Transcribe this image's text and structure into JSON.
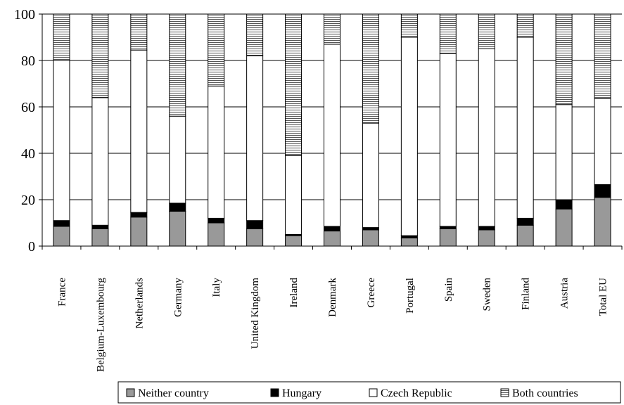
{
  "chart_data": {
    "type": "bar",
    "stacked": true,
    "categories": [
      "France",
      "Belgium-Luxembourg",
      "Netherlands",
      "Germany",
      "Italy",
      "United Kingdom",
      "Ireland",
      "Denmark",
      "Greece",
      "Portugal",
      "Spain",
      "Sweden",
      "Finland",
      "Austria",
      "Total EU"
    ],
    "series": [
      {
        "name": "Neither country",
        "color": "#999999",
        "pattern": "solid",
        "values": [
          8.5,
          7.5,
          12.5,
          15,
          10,
          7.5,
          4.5,
          6.5,
          7,
          3.5,
          7.5,
          7,
          9,
          16,
          21
        ]
      },
      {
        "name": "Hungary",
        "color": "#000000",
        "pattern": "solid",
        "values": [
          2.5,
          1.5,
          2,
          3.5,
          2,
          3.5,
          0.5,
          2,
          1,
          1,
          1,
          1.5,
          3,
          4,
          5.5
        ]
      },
      {
        "name": "Czech Republic",
        "color": "#ffffff",
        "pattern": "solid",
        "values": [
          69,
          55,
          70,
          37.5,
          57,
          71,
          34,
          78.5,
          45,
          85.5,
          74.5,
          76.5,
          78,
          41,
          37
        ]
      },
      {
        "name": "Both countries",
        "color": "#ffffff",
        "pattern": "horizontal-lines",
        "values": [
          20,
          36,
          15.5,
          44,
          31,
          18,
          61,
          13,
          47,
          10,
          17,
          15,
          10,
          39,
          36.5
        ]
      }
    ],
    "ylim": [
      0,
      100
    ],
    "yticks": [
      0,
      20,
      40,
      60,
      80,
      100
    ],
    "grid": "horizontal",
    "legend": "bottom-right",
    "title": "",
    "xlabel": "",
    "ylabel": ""
  }
}
